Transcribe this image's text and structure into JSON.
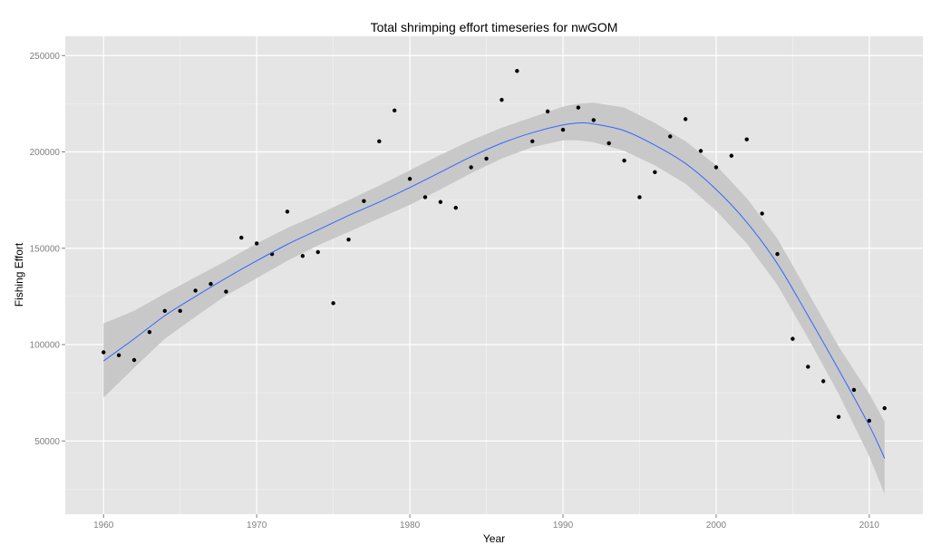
{
  "chart_data": {
    "type": "scatter",
    "title": "Total shrimping effort timeseries for nwGOM",
    "xlabel": "Year",
    "ylabel": "Fishing Effort",
    "xlim": [
      1957.5,
      2013.5
    ],
    "ylim": [
      12000,
      260000
    ],
    "xticks": [
      1960,
      1970,
      1980,
      1990,
      2000,
      2010
    ],
    "yticks": [
      50000,
      100000,
      150000,
      200000,
      250000
    ],
    "yticklabels": [
      "50000",
      "100000",
      "150000",
      "200000",
      "250000"
    ],
    "grid": true,
    "colors": {
      "panel": "#e5e5e5",
      "grid": "#ffffff",
      "point": "#000000",
      "smooth": "#3366ff",
      "band": "#c8c8c8"
    },
    "points": {
      "x": [
        1960,
        1961,
        1962,
        1963,
        1964,
        1965,
        1966,
        1967,
        1968,
        1969,
        1970,
        1971,
        1972,
        1973,
        1974,
        1975,
        1976,
        1977,
        1978,
        1979,
        1980,
        1981,
        1982,
        1983,
        1984,
        1985,
        1986,
        1987,
        1988,
        1989,
        1990,
        1991,
        1992,
        1993,
        1994,
        1995,
        1996,
        1997,
        1998,
        1999,
        2000,
        2001,
        2002,
        2003,
        2004,
        2005,
        2006,
        2007,
        2008,
        2009,
        2010,
        2011
      ],
      "y": [
        96000,
        94500,
        92000,
        106500,
        117500,
        117500,
        128000,
        131500,
        127500,
        155500,
        152500,
        147000,
        169000,
        146000,
        148000,
        121500,
        154500,
        174500,
        205500,
        221500,
        186000,
        176500,
        174000,
        171000,
        192000,
        196500,
        227000,
        242000,
        205500,
        221000,
        211500,
        223000,
        216500,
        204500,
        195500,
        176500,
        189500,
        208000,
        217000,
        200500,
        192000,
        198000,
        206500,
        168000,
        147000,
        103000,
        88500,
        81000,
        62500,
        76500,
        60500,
        67000
      ]
    },
    "smooth": {
      "x": [
        1960,
        1962,
        1964,
        1966,
        1968,
        1970,
        1972,
        1974,
        1976,
        1978,
        1980,
        1982,
        1984,
        1986,
        1988,
        1990,
        1991,
        1992,
        1994,
        1996,
        1998,
        2000,
        2002,
        2004,
        2006,
        2008,
        2010,
        2011
      ],
      "y": [
        91500,
        103000,
        115000,
        125000,
        134500,
        143500,
        152000,
        159500,
        167000,
        174000,
        181500,
        189500,
        197500,
        204500,
        210000,
        214000,
        215000,
        214500,
        211000,
        203500,
        194000,
        180500,
        163500,
        142000,
        115000,
        87000,
        58000,
        41000
      ]
    },
    "band": {
      "x": [
        1960,
        1962,
        1964,
        1966,
        1968,
        1970,
        1972,
        1974,
        1976,
        1978,
        1980,
        1982,
        1984,
        1986,
        1988,
        1990,
        1991,
        1992,
        1994,
        1996,
        1998,
        2000,
        2002,
        2004,
        2006,
        2008,
        2010,
        2011
      ],
      "lower": [
        72500,
        88000,
        103000,
        114500,
        125500,
        134500,
        143500,
        151500,
        158500,
        165500,
        172500,
        180500,
        189000,
        196500,
        202500,
        206000,
        206000,
        205000,
        200500,
        193000,
        183500,
        169500,
        152500,
        131000,
        103500,
        74500,
        42000,
        22500
      ],
      "upper": [
        111000,
        117500,
        126500,
        135000,
        143500,
        152500,
        160500,
        167500,
        175000,
        182500,
        190500,
        198500,
        206000,
        212500,
        218000,
        223500,
        225000,
        225500,
        223000,
        215000,
        205500,
        193000,
        176000,
        155000,
        127000,
        99000,
        74500,
        60000
      ]
    }
  }
}
